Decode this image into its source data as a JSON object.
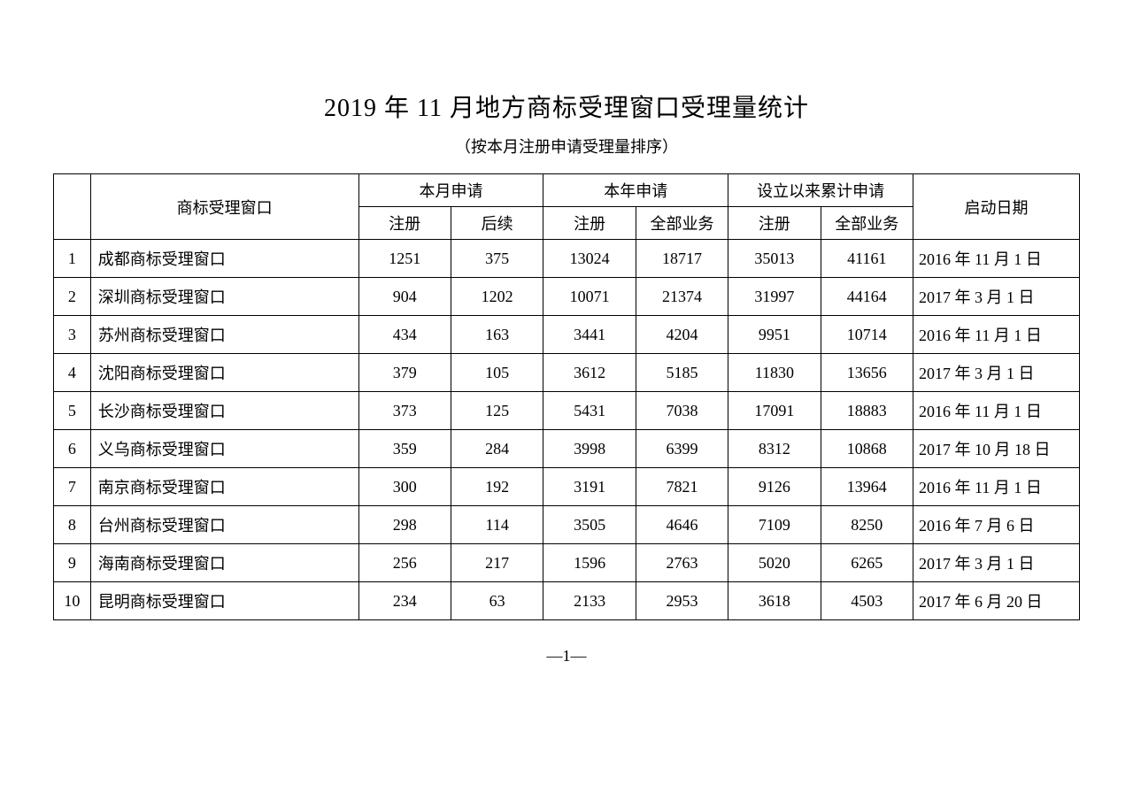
{
  "title": "2019 年 11 月地方商标受理窗口受理量统计",
  "subtitle": "（按本月注册申请受理量排序）",
  "page_number": "—1—",
  "table": {
    "headers": {
      "window": "商标受理窗口",
      "month_group": "本月申请",
      "year_group": "本年申请",
      "total_group": "设立以来累计申请",
      "start_date": "启动日期",
      "sub_reg": "注册",
      "sub_follow": "后续",
      "sub_all": "全部业务"
    },
    "rows": [
      {
        "idx": "1",
        "name": "成都商标受理窗口",
        "m_reg": "1251",
        "m_fu": "375",
        "y_reg": "13024",
        "y_all": "18717",
        "t_reg": "35013",
        "t_all": "41161",
        "date": "2016 年 11 月 1 日"
      },
      {
        "idx": "2",
        "name": "深圳商标受理窗口",
        "m_reg": "904",
        "m_fu": "1202",
        "y_reg": "10071",
        "y_all": "21374",
        "t_reg": "31997",
        "t_all": "44164",
        "date": "2017 年 3 月 1 日"
      },
      {
        "idx": "3",
        "name": "苏州商标受理窗口",
        "m_reg": "434",
        "m_fu": "163",
        "y_reg": "3441",
        "y_all": "4204",
        "t_reg": "9951",
        "t_all": "10714",
        "date": "2016 年 11 月 1 日"
      },
      {
        "idx": "4",
        "name": "沈阳商标受理窗口",
        "m_reg": "379",
        "m_fu": "105",
        "y_reg": "3612",
        "y_all": "5185",
        "t_reg": "11830",
        "t_all": "13656",
        "date": "2017 年 3 月 1 日"
      },
      {
        "idx": "5",
        "name": "长沙商标受理窗口",
        "m_reg": "373",
        "m_fu": "125",
        "y_reg": "5431",
        "y_all": "7038",
        "t_reg": "17091",
        "t_all": "18883",
        "date": "2016 年 11 月 1 日"
      },
      {
        "idx": "6",
        "name": "义乌商标受理窗口",
        "m_reg": "359",
        "m_fu": "284",
        "y_reg": "3998",
        "y_all": "6399",
        "t_reg": "8312",
        "t_all": "10868",
        "date": "2017 年 10 月 18 日"
      },
      {
        "idx": "7",
        "name": "南京商标受理窗口",
        "m_reg": "300",
        "m_fu": "192",
        "y_reg": "3191",
        "y_all": "7821",
        "t_reg": "9126",
        "t_all": "13964",
        "date": "2016 年 11 月 1 日"
      },
      {
        "idx": "8",
        "name": "台州商标受理窗口",
        "m_reg": "298",
        "m_fu": "114",
        "y_reg": "3505",
        "y_all": "4646",
        "t_reg": "7109",
        "t_all": "8250",
        "date": "2016 年 7 月 6 日"
      },
      {
        "idx": "9",
        "name": "海南商标受理窗口",
        "m_reg": "256",
        "m_fu": "217",
        "y_reg": "1596",
        "y_all": "2763",
        "t_reg": "5020",
        "t_all": "6265",
        "date": "2017 年 3 月 1 日"
      },
      {
        "idx": "10",
        "name": "昆明商标受理窗口",
        "m_reg": "234",
        "m_fu": "63",
        "y_reg": "2133",
        "y_all": "2953",
        "t_reg": "3618",
        "t_all": "4503",
        "date": "2017 年 6 月 20 日"
      }
    ]
  }
}
